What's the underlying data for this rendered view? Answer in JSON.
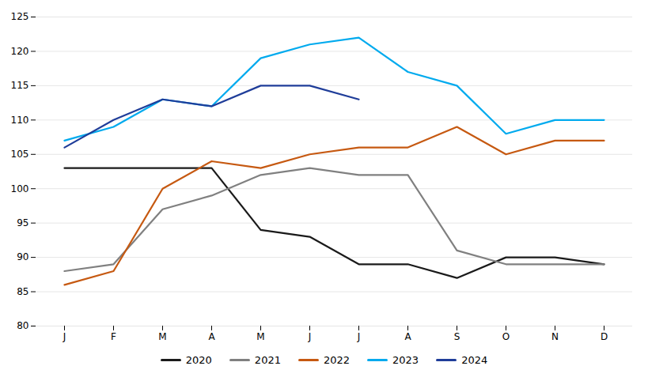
{
  "chart_data": {
    "type": "line",
    "categories": [
      "J",
      "F",
      "M",
      "A",
      "M",
      "J",
      "J",
      "A",
      "S",
      "O",
      "N",
      "D"
    ],
    "series": [
      {
        "name": "2020",
        "color": "#1a1a1a",
        "values": [
          103,
          103,
          103,
          103,
          94,
          93,
          89,
          89,
          87,
          90,
          90,
          89
        ]
      },
      {
        "name": "2021",
        "color": "#808080",
        "values": [
          88,
          89,
          97,
          99,
          102,
          103,
          102,
          102,
          91,
          89,
          89,
          89
        ]
      },
      {
        "name": "2022",
        "color": "#C65911",
        "values": [
          86,
          88,
          100,
          104,
          103,
          105,
          106,
          106,
          109,
          105,
          107,
          107
        ]
      },
      {
        "name": "2023",
        "color": "#00AAEE",
        "values": [
          107,
          109,
          113,
          112,
          119,
          121,
          122,
          117,
          115,
          108,
          110,
          110
        ]
      },
      {
        "name": "2024",
        "color": "#1F3D99",
        "values": [
          106,
          110,
          113,
          112,
          115,
          115,
          113,
          null,
          null,
          null,
          null,
          null
        ]
      }
    ],
    "ylim": [
      80,
      125
    ],
    "yticks": [
      80,
      85,
      90,
      95,
      100,
      105,
      110,
      115,
      120,
      125
    ],
    "grid": true,
    "legend": "bottom"
  }
}
